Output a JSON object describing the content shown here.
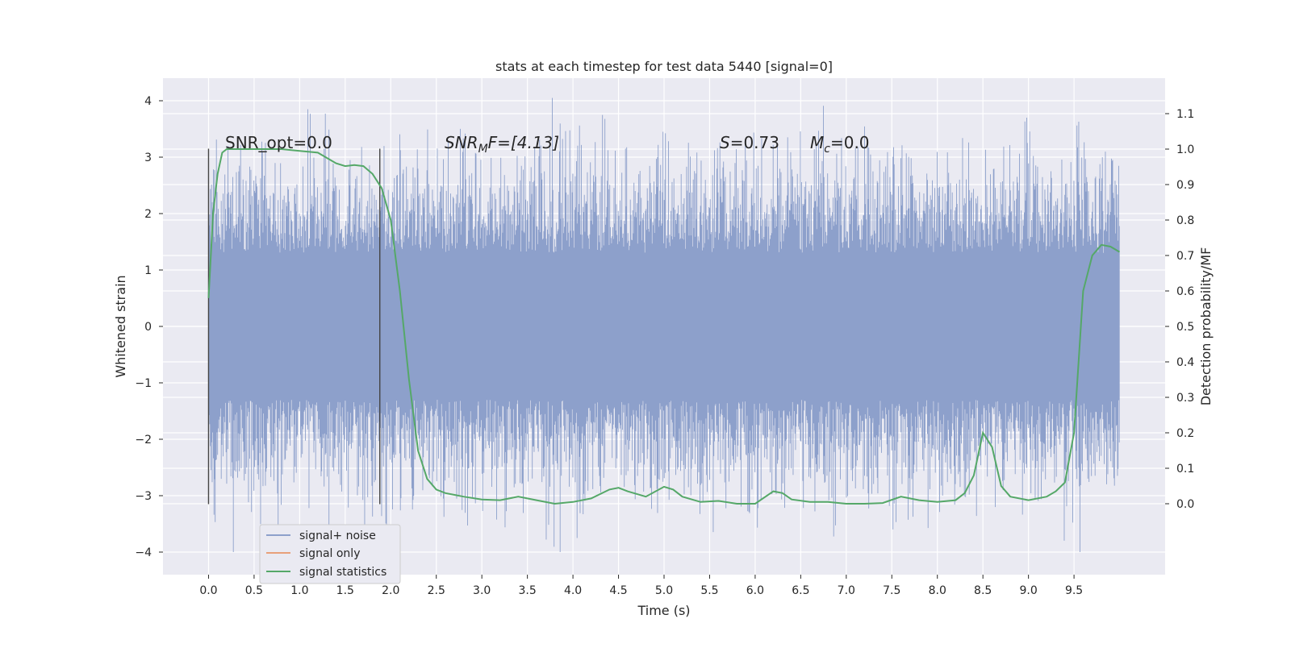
{
  "chart_data": {
    "type": "line",
    "title": "stats at each timestep for test data 5440 [signal=0]",
    "xlabel": "Time (s)",
    "ylabel": "Whitened strain",
    "y2label": "Detection probability/MF",
    "xlim": [
      -0.5,
      10.5
    ],
    "ylim": [
      -4.4,
      4.4
    ],
    "y2lim": [
      -0.2,
      1.2
    ],
    "grid": true,
    "legend_position": "bottom-left",
    "x_ticks": [
      "0.0",
      "0.5",
      "1.0",
      "1.5",
      "2.0",
      "2.5",
      "3.0",
      "3.5",
      "4.0",
      "4.5",
      "5.0",
      "5.5",
      "6.0",
      "6.5",
      "7.0",
      "7.5",
      "8.0",
      "8.5",
      "9.0",
      "9.5"
    ],
    "x_tick_values": [
      0.0,
      0.5,
      1.0,
      1.5,
      2.0,
      2.5,
      3.0,
      3.5,
      4.0,
      4.5,
      5.0,
      5.5,
      6.0,
      6.5,
      7.0,
      7.5,
      8.0,
      8.5,
      9.0,
      9.5
    ],
    "y_ticks": [
      "−4",
      "−3",
      "−2",
      "−1",
      "0",
      "1",
      "2",
      "3",
      "4"
    ],
    "y_tick_values": [
      -4,
      -3,
      -2,
      -1,
      0,
      1,
      2,
      3,
      4
    ],
    "y2_ticks": [
      "0.0",
      "0.1",
      "0.2",
      "0.3",
      "0.4",
      "0.5",
      "0.6",
      "0.7",
      "0.8",
      "0.9",
      "1.0",
      "1.1"
    ],
    "y2_tick_values": [
      0.0,
      0.1,
      0.2,
      0.3,
      0.4,
      0.5,
      0.6,
      0.7,
      0.8,
      0.9,
      1.0,
      1.1
    ],
    "annotations": {
      "snr_opt": "SNR_opt=0.0",
      "snr_mf_base": "SNR",
      "snr_mf_sub": "M",
      "snr_mf_rest": "F=[4.13]",
      "s_label": "S",
      "s_value": "=0.73",
      "mc_base": "M",
      "mc_sub": "c",
      "mc_value": "=0.0"
    },
    "markers": [
      {
        "x": 0.0,
        "y_range": [
          -3.15,
          3.15
        ]
      },
      {
        "x": 1.88,
        "y_range": [
          -3.15,
          3.15
        ]
      }
    ],
    "series": [
      {
        "name": "signal+ noise",
        "color": "#8da0cb",
        "x_range": [
          0.0,
          10.0
        ],
        "typical_range": [
          -1.8,
          1.8
        ],
        "min": -4.0,
        "max": 4.05
      },
      {
        "name": "signal only",
        "color": "#e8a07a",
        "x": [],
        "y": []
      },
      {
        "name": "signal statistics",
        "color": "#55a868",
        "x": [
          0.0,
          0.05,
          0.1,
          0.15,
          0.2,
          0.3,
          0.5,
          0.8,
          1.0,
          1.2,
          1.3,
          1.4,
          1.5,
          1.6,
          1.7,
          1.8,
          1.9,
          2.0,
          2.1,
          2.2,
          2.3,
          2.4,
          2.5,
          2.6,
          2.7,
          2.8,
          3.0,
          3.2,
          3.4,
          3.6,
          3.8,
          4.0,
          4.2,
          4.4,
          4.5,
          4.6,
          4.8,
          5.0,
          5.1,
          5.2,
          5.4,
          5.6,
          5.8,
          6.0,
          6.2,
          6.3,
          6.4,
          6.6,
          6.8,
          7.0,
          7.2,
          7.4,
          7.6,
          7.8,
          8.0,
          8.2,
          8.3,
          8.4,
          8.5,
          8.6,
          8.7,
          8.8,
          9.0,
          9.2,
          9.3,
          9.4,
          9.5,
          9.6,
          9.7,
          9.8,
          9.9,
          10.0
        ],
        "y": [
          0.58,
          0.82,
          0.93,
          0.99,
          1.0,
          1.0,
          1.0,
          1.0,
          0.995,
          0.99,
          0.975,
          0.96,
          0.952,
          0.955,
          0.952,
          0.93,
          0.89,
          0.8,
          0.6,
          0.35,
          0.15,
          0.07,
          0.04,
          0.03,
          0.025,
          0.02,
          0.012,
          0.01,
          0.02,
          0.01,
          0.0,
          0.005,
          0.015,
          0.04,
          0.045,
          0.035,
          0.02,
          0.048,
          0.04,
          0.02,
          0.005,
          0.008,
          0.0,
          0.0,
          0.035,
          0.03,
          0.012,
          0.005,
          0.005,
          0.0,
          0.0,
          0.002,
          0.02,
          0.01,
          0.005,
          0.01,
          0.03,
          0.08,
          0.2,
          0.16,
          0.05,
          0.02,
          0.01,
          0.02,
          0.035,
          0.06,
          0.2,
          0.6,
          0.7,
          0.73,
          0.725,
          0.71
        ]
      }
    ],
    "legend": [
      "signal+ noise",
      "signal only",
      "signal statistics"
    ]
  }
}
